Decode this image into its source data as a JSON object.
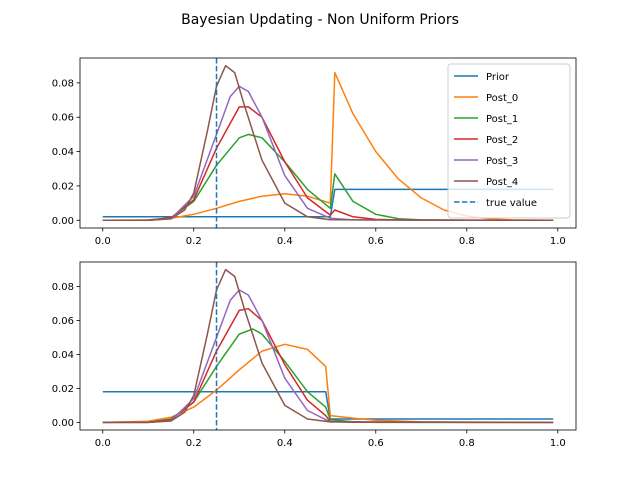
{
  "figure": {
    "title": "Bayesian Updating - Non Uniform Priors"
  },
  "colors": {
    "Prior": "#1f77b4",
    "Post_0": "#ff7f0e",
    "Post_1": "#2ca02c",
    "Post_2": "#d62728",
    "Post_3": "#9467bd",
    "Post_4": "#8c564b",
    "true_value": "#1f77b4"
  },
  "chart_data": [
    {
      "type": "line",
      "title": "",
      "xlabel": "",
      "ylabel": "",
      "xlim": [
        -0.05,
        1.04
      ],
      "ylim": [
        -0.0045,
        0.0945
      ],
      "xticks": [
        0.0,
        0.2,
        0.4,
        0.6,
        0.8,
        1.0
      ],
      "xtick_labels": [
        "0.0",
        "0.2",
        "0.4",
        "0.6",
        "0.8",
        "1.0"
      ],
      "yticks": [
        0.0,
        0.02,
        0.04,
        0.06,
        0.08
      ],
      "ytick_labels": [
        "0.00",
        "0.02",
        "0.04",
        "0.06",
        "0.08"
      ],
      "grid": false,
      "legend": {
        "placement": "top-right",
        "entries": [
          "Prior",
          "Post_0",
          "Post_1",
          "Post_2",
          "Post_3",
          "Post_4",
          "true value"
        ]
      },
      "vline": {
        "x": 0.25,
        "name": "true value",
        "style": "dashed"
      },
      "series": [
        {
          "name": "Prior",
          "x": [
            0.0,
            0.5,
            0.5,
            0.51,
            0.99
          ],
          "y": [
            0.002,
            0.002,
            0.002,
            0.018,
            0.018
          ]
        },
        {
          "name": "Post_0",
          "x": [
            0.0,
            0.1,
            0.15,
            0.2,
            0.25,
            0.3,
            0.35,
            0.4,
            0.45,
            0.5,
            0.51,
            0.55,
            0.6,
            0.65,
            0.7,
            0.75,
            0.8,
            0.85,
            0.9,
            0.99
          ],
          "y": [
            0.0,
            0.0002,
            0.0012,
            0.0035,
            0.007,
            0.011,
            0.014,
            0.0155,
            0.014,
            0.01,
            0.086,
            0.062,
            0.04,
            0.024,
            0.013,
            0.006,
            0.0025,
            0.0008,
            0.0002,
            0.0
          ]
        },
        {
          "name": "Post_1",
          "x": [
            0.0,
            0.1,
            0.15,
            0.2,
            0.25,
            0.3,
            0.32,
            0.35,
            0.4,
            0.45,
            0.5,
            0.51,
            0.55,
            0.6,
            0.65,
            0.7,
            0.8,
            0.99
          ],
          "y": [
            0.0,
            0.0001,
            0.0015,
            0.011,
            0.032,
            0.048,
            0.05,
            0.048,
            0.034,
            0.018,
            0.007,
            0.027,
            0.011,
            0.0035,
            0.0009,
            0.0002,
            0.0,
            0.0
          ]
        },
        {
          "name": "Post_2",
          "x": [
            0.0,
            0.1,
            0.15,
            0.2,
            0.25,
            0.3,
            0.32,
            0.35,
            0.4,
            0.45,
            0.5,
            0.51,
            0.55,
            0.6,
            0.7,
            0.99
          ],
          "y": [
            0.0,
            0.0,
            0.0015,
            0.012,
            0.042,
            0.066,
            0.066,
            0.06,
            0.034,
            0.013,
            0.003,
            0.006,
            0.002,
            0.0005,
            0.0,
            0.0
          ]
        },
        {
          "name": "Post_3",
          "x": [
            0.0,
            0.1,
            0.15,
            0.2,
            0.25,
            0.28,
            0.3,
            0.32,
            0.35,
            0.4,
            0.45,
            0.5,
            0.55,
            0.99
          ],
          "y": [
            0.0,
            0.0,
            0.001,
            0.014,
            0.05,
            0.072,
            0.078,
            0.075,
            0.06,
            0.026,
            0.007,
            0.0012,
            0.0002,
            0.0
          ]
        },
        {
          "name": "Post_4",
          "x": [
            0.0,
            0.1,
            0.15,
            0.18,
            0.2,
            0.23,
            0.25,
            0.27,
            0.29,
            0.31,
            0.35,
            0.4,
            0.45,
            0.5,
            0.99
          ],
          "y": [
            0.0,
            0.0,
            0.0008,
            0.006,
            0.016,
            0.052,
            0.078,
            0.09,
            0.086,
            0.068,
            0.035,
            0.01,
            0.002,
            0.0003,
            0.0
          ]
        }
      ]
    },
    {
      "type": "line",
      "title": "",
      "xlabel": "",
      "ylabel": "",
      "xlim": [
        -0.05,
        1.04
      ],
      "ylim": [
        -0.0045,
        0.0945
      ],
      "xticks": [
        0.0,
        0.2,
        0.4,
        0.6,
        0.8,
        1.0
      ],
      "xtick_labels": [
        "0.0",
        "0.2",
        "0.4",
        "0.6",
        "0.8",
        "1.0"
      ],
      "yticks": [
        0.0,
        0.02,
        0.04,
        0.06,
        0.08
      ],
      "ytick_labels": [
        "0.00",
        "0.02",
        "0.04",
        "0.06",
        "0.08"
      ],
      "grid": false,
      "vline": {
        "x": 0.25,
        "name": "true value",
        "style": "dashed"
      },
      "series": [
        {
          "name": "Prior",
          "x": [
            0.0,
            0.49,
            0.5,
            0.99
          ],
          "y": [
            0.018,
            0.018,
            0.002,
            0.002
          ]
        },
        {
          "name": "Post_0",
          "x": [
            0.0,
            0.1,
            0.15,
            0.2,
            0.25,
            0.3,
            0.35,
            0.4,
            0.45,
            0.49,
            0.5,
            0.55,
            0.6,
            0.7,
            0.8,
            0.99
          ],
          "y": [
            0.0,
            0.0006,
            0.003,
            0.009,
            0.019,
            0.031,
            0.042,
            0.046,
            0.043,
            0.033,
            0.004,
            0.0025,
            0.0013,
            0.0003,
            0.0,
            0.0
          ]
        },
        {
          "name": "Post_1",
          "x": [
            0.0,
            0.1,
            0.15,
            0.2,
            0.25,
            0.3,
            0.33,
            0.35,
            0.4,
            0.45,
            0.49,
            0.5,
            0.55,
            0.6,
            0.99
          ],
          "y": [
            0.0,
            0.0001,
            0.002,
            0.012,
            0.033,
            0.052,
            0.055,
            0.052,
            0.036,
            0.018,
            0.009,
            0.0015,
            0.0004,
            0.0,
            0.0
          ]
        },
        {
          "name": "Post_2",
          "x": [
            0.0,
            0.1,
            0.15,
            0.2,
            0.25,
            0.3,
            0.32,
            0.35,
            0.4,
            0.45,
            0.49,
            0.5,
            0.55,
            0.99
          ],
          "y": [
            0.0,
            0.0,
            0.0015,
            0.012,
            0.042,
            0.066,
            0.067,
            0.06,
            0.034,
            0.013,
            0.004,
            0.0005,
            0.0001,
            0.0
          ]
        },
        {
          "name": "Post_3",
          "x": [
            0.0,
            0.1,
            0.15,
            0.2,
            0.25,
            0.28,
            0.3,
            0.32,
            0.35,
            0.4,
            0.45,
            0.5,
            0.99
          ],
          "y": [
            0.0,
            0.0,
            0.001,
            0.014,
            0.05,
            0.072,
            0.078,
            0.075,
            0.06,
            0.026,
            0.007,
            0.0003,
            0.0
          ]
        },
        {
          "name": "Post_4",
          "x": [
            0.0,
            0.1,
            0.15,
            0.18,
            0.2,
            0.23,
            0.25,
            0.27,
            0.29,
            0.31,
            0.35,
            0.4,
            0.45,
            0.5,
            0.99
          ],
          "y": [
            0.0,
            0.0,
            0.0008,
            0.006,
            0.016,
            0.052,
            0.078,
            0.09,
            0.086,
            0.068,
            0.035,
            0.01,
            0.002,
            0.0003,
            0.0
          ]
        }
      ]
    }
  ]
}
